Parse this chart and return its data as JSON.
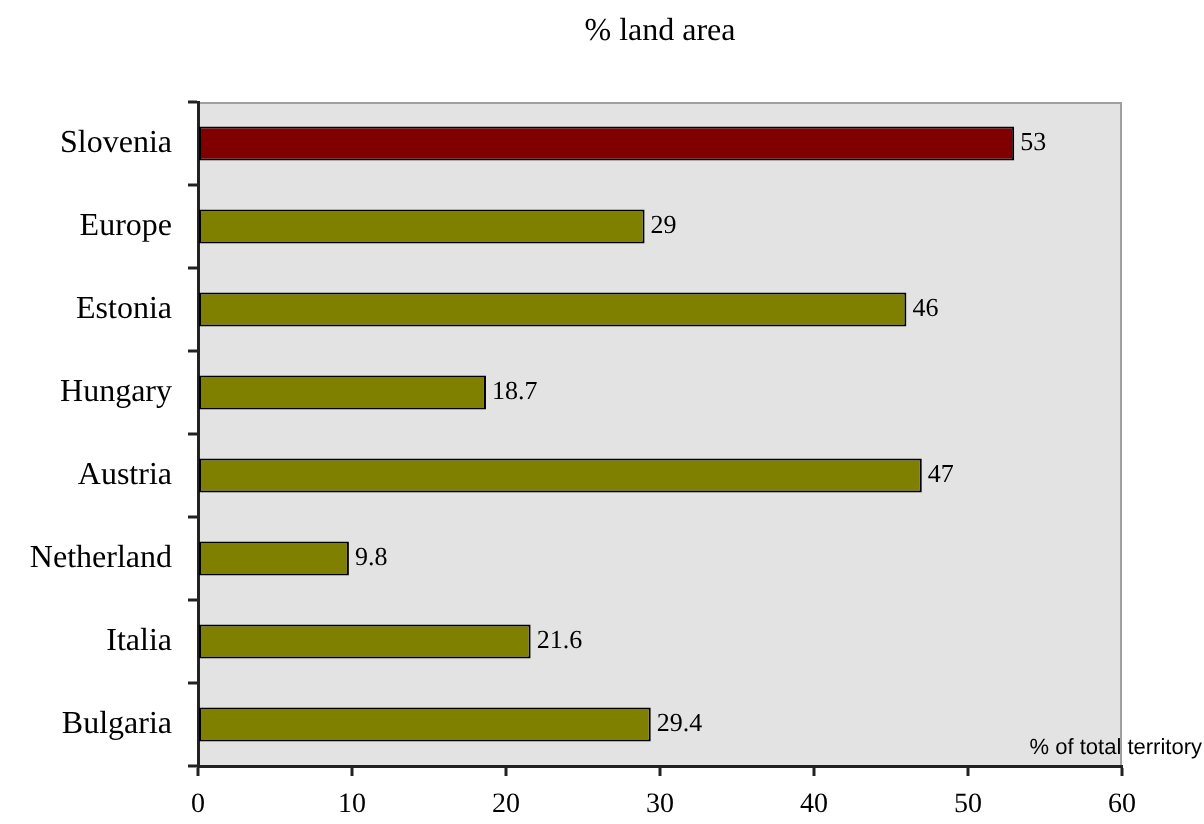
{
  "chart_data": {
    "type": "bar",
    "orientation": "horizontal",
    "title": "% land area",
    "xlabel": "% of total territory",
    "categories": [
      "Slovenia",
      "Europe",
      "Estonia",
      "Hungary",
      "Austria",
      "Netherland",
      "Italia",
      "Bulgaria"
    ],
    "values": [
      53,
      29,
      46,
      18.7,
      47,
      9.8,
      21.6,
      29.4
    ],
    "colors": [
      "#800000",
      "#808000",
      "#808000",
      "#808000",
      "#808000",
      "#808000",
      "#808000",
      "#808000"
    ],
    "xlim": [
      0,
      60
    ],
    "xticks": [
      0,
      10,
      20,
      30,
      40,
      50,
      60
    ],
    "data_labels": true
  }
}
